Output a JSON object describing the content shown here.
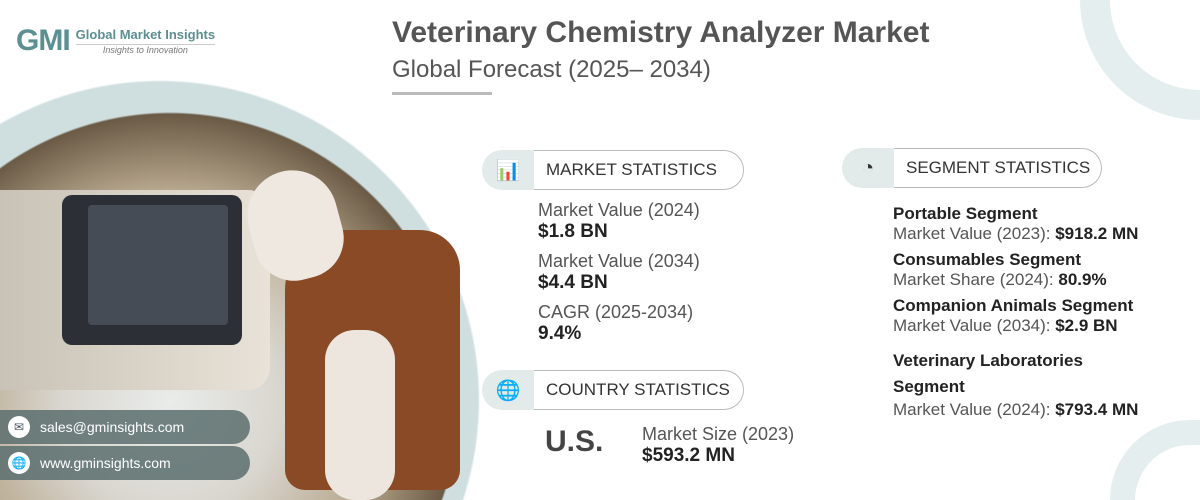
{
  "logo": {
    "mark": "GMI",
    "name": "Global Market Insights",
    "tagline": "Insights to Innovation"
  },
  "header": {
    "title": "Veterinary Chemistry Analyzer Market",
    "subtitle": "Global Forecast (2025– 2034)"
  },
  "contact": {
    "email": "sales@gminsights.com",
    "website": "www.gminsights.com"
  },
  "market_statistics": {
    "heading": "MARKET STATISTICS",
    "items": [
      {
        "label": "Market Value (2024)",
        "value": "$1.8 BN"
      },
      {
        "label": "Market Value (2034)",
        "value": "$4.4 BN"
      },
      {
        "label": "CAGR (2025-2034)",
        "value": "9.4%"
      }
    ]
  },
  "country_statistics": {
    "heading": "COUNTRY STATISTICS",
    "country": "U.S.",
    "label": "Market Size (2023)",
    "value": "$593.2 MN"
  },
  "segment_statistics": {
    "heading": "SEGMENT STATISTICS",
    "items": [
      {
        "name": "Portable Segment",
        "label": "Market Value (2023):",
        "value": "$918.2 MN"
      },
      {
        "name": "Consumables Segment",
        "label": "Market Share (2024):",
        "value": "80.9%"
      },
      {
        "name": "Companion Animals Segment",
        "label": "Market Value (2034):",
        "value": "$2.9 BN"
      },
      {
        "name": "Veterinary Laboratories Segment",
        "label": "Market Value (2024):",
        "value": "$793.4 MN"
      }
    ]
  }
}
